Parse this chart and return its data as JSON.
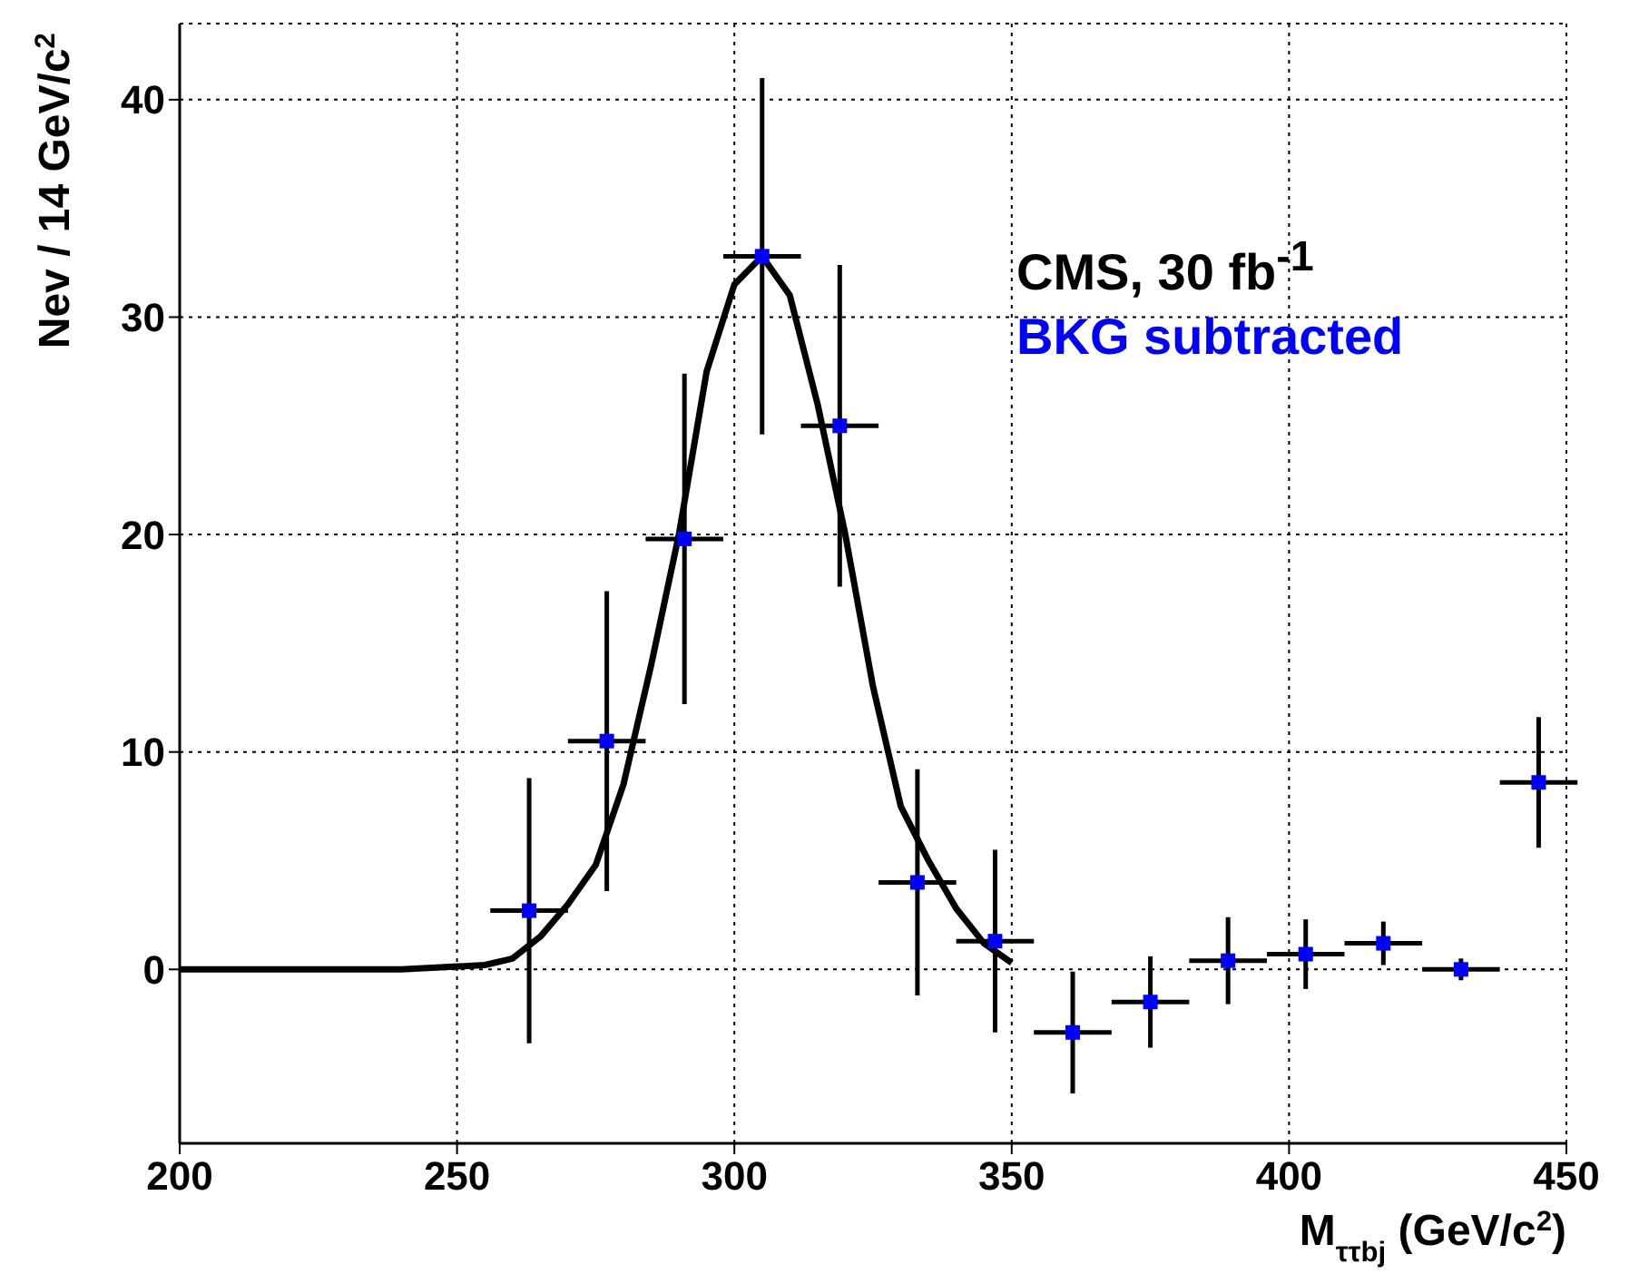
{
  "chart_data": {
    "type": "scatter",
    "xlabel": "M$_{ττbj}$ (GeV/c$^{2}$)",
    "ylabel": "Nev / 14 GeV/c$^{2}$",
    "annotations": [
      "CMS, 30 fb$^{-1}$",
      "BKG subtracted"
    ],
    "xlim": [
      200,
      450
    ],
    "xticks": [
      200,
      250,
      300,
      350,
      400,
      450
    ],
    "ylim": [
      -8,
      43.5
    ],
    "yticks": [
      0,
      10,
      20,
      30,
      40
    ],
    "grid": true,
    "series": [
      {
        "color": "#0000ff",
        "marker": "square",
        "x": [
          263,
          277,
          291,
          305,
          319,
          333,
          347,
          361,
          375,
          389,
          403,
          417,
          431,
          445
        ],
        "values": [
          2.7,
          10.5,
          19.8,
          32.8,
          25.0,
          4.0,
          1.3,
          -2.9,
          -1.5,
          0.4,
          0.7,
          1.2,
          0.0,
          8.6
        ],
        "errors": [
          6.1,
          6.9,
          7.6,
          8.2,
          7.4,
          5.2,
          4.2,
          2.8,
          2.1,
          2.0,
          1.6,
          1.0,
          0.5,
          3.0
        ],
        "xerrors": [
          7,
          7,
          7,
          7,
          7,
          7,
          7,
          7,
          7,
          7,
          7,
          7,
          7,
          7
        ]
      },
      {
        "type": "line",
        "color": "#000000",
        "marker": "none",
        "line_style": "solid",
        "x": [
          200,
          240,
          255,
          260,
          265,
          270,
          275,
          280,
          285,
          290,
          295,
          300,
          305,
          310,
          315,
          320,
          325,
          330,
          335,
          340,
          345,
          350
        ],
        "values": [
          0,
          0,
          0.2,
          0.5,
          1.5,
          3.0,
          4.8,
          8.5,
          14,
          20,
          27.5,
          31.5,
          32.8,
          31,
          26,
          20,
          13,
          7.5,
          5,
          2.8,
          1.2,
          0.3
        ]
      }
    ]
  }
}
